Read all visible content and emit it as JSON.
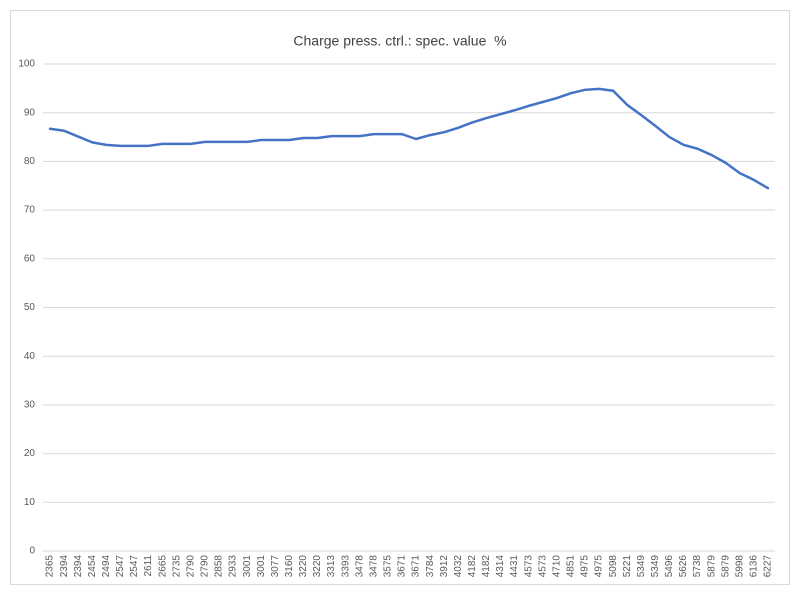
{
  "chart_data": {
    "type": "line",
    "title": "Charge press. ctrl.: spec. value  %",
    "categories": [
      "2365",
      "2394",
      "2394",
      "2454",
      "2494",
      "2547",
      "2547",
      "2611",
      "2665",
      "2735",
      "2790",
      "2790",
      "2858",
      "2933",
      "3001",
      "3001",
      "3077",
      "3160",
      "3220",
      "3220",
      "3313",
      "3393",
      "3478",
      "3478",
      "3575",
      "3671",
      "3671",
      "3784",
      "3912",
      "4032",
      "4182",
      "4182",
      "4314",
      "4431",
      "4573",
      "4573",
      "4710",
      "4851",
      "4975",
      "4975",
      "5098",
      "5221",
      "5349",
      "5349",
      "5496",
      "5626",
      "5738",
      "5879",
      "5879",
      "5998",
      "6136",
      "6227"
    ],
    "series": [
      {
        "name": "Charge press. ctrl.: spec. value",
        "color": "#4472c4",
        "values": [
          86.7,
          86.3,
          85.1,
          83.9,
          83.4,
          83.2,
          83.2,
          83.2,
          83.6,
          83.6,
          83.6,
          84,
          84,
          84,
          84,
          84.4,
          84.4,
          84.4,
          84.8,
          84.8,
          85.2,
          85.2,
          85.2,
          85.6,
          85.6,
          85.6,
          84.6,
          85.4,
          86,
          86.9,
          88,
          88.9,
          89.7,
          90.5,
          91.4,
          92.2,
          93,
          94,
          94.7,
          94.9,
          94.5,
          91.6,
          89.5,
          87.3,
          85,
          83.4,
          82.6,
          81.3,
          79.7,
          77.6,
          76.2,
          74.5
        ]
      }
    ],
    "ylim": [
      0,
      100
    ],
    "yticks": [
      0,
      10,
      20,
      30,
      40,
      50,
      60,
      70,
      80,
      90,
      100
    ],
    "grid": true
  }
}
